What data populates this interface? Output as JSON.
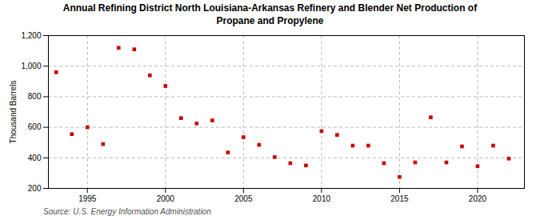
{
  "chart_data": {
    "type": "scatter",
    "title": "Annual Refining District North Louisiana-Arkansas Refinery and Blender Net Production of\nPropane and Propylene",
    "ylabel": "Thousand Barrels",
    "source": "Source: U.S. Energy Information Administration",
    "x": [
      1993,
      1994,
      1995,
      1996,
      1997,
      1998,
      1999,
      2000,
      2001,
      2002,
      2003,
      2004,
      2005,
      2006,
      2007,
      2008,
      2009,
      2010,
      2011,
      2012,
      2013,
      2014,
      2015,
      2016,
      2017,
      2018,
      2019,
      2020,
      2021,
      2022
    ],
    "values": [
      960,
      555,
      600,
      490,
      1120,
      1110,
      940,
      870,
      660,
      625,
      645,
      435,
      535,
      485,
      405,
      365,
      350,
      575,
      550,
      480,
      480,
      365,
      275,
      370,
      665,
      370,
      475,
      345,
      480,
      395
    ],
    "color": "#cc0000",
    "marker": "square",
    "xlim": [
      1992.5,
      2023
    ],
    "xticks": [
      1995,
      2000,
      2005,
      2010,
      2015,
      2020
    ],
    "ylim": [
      200,
      1200
    ],
    "yticks": [
      200,
      400,
      600,
      800,
      {
        "value": 1000,
        "label": "1,000"
      },
      {
        "value": 1200,
        "label": "1,200"
      }
    ],
    "grid": true
  }
}
